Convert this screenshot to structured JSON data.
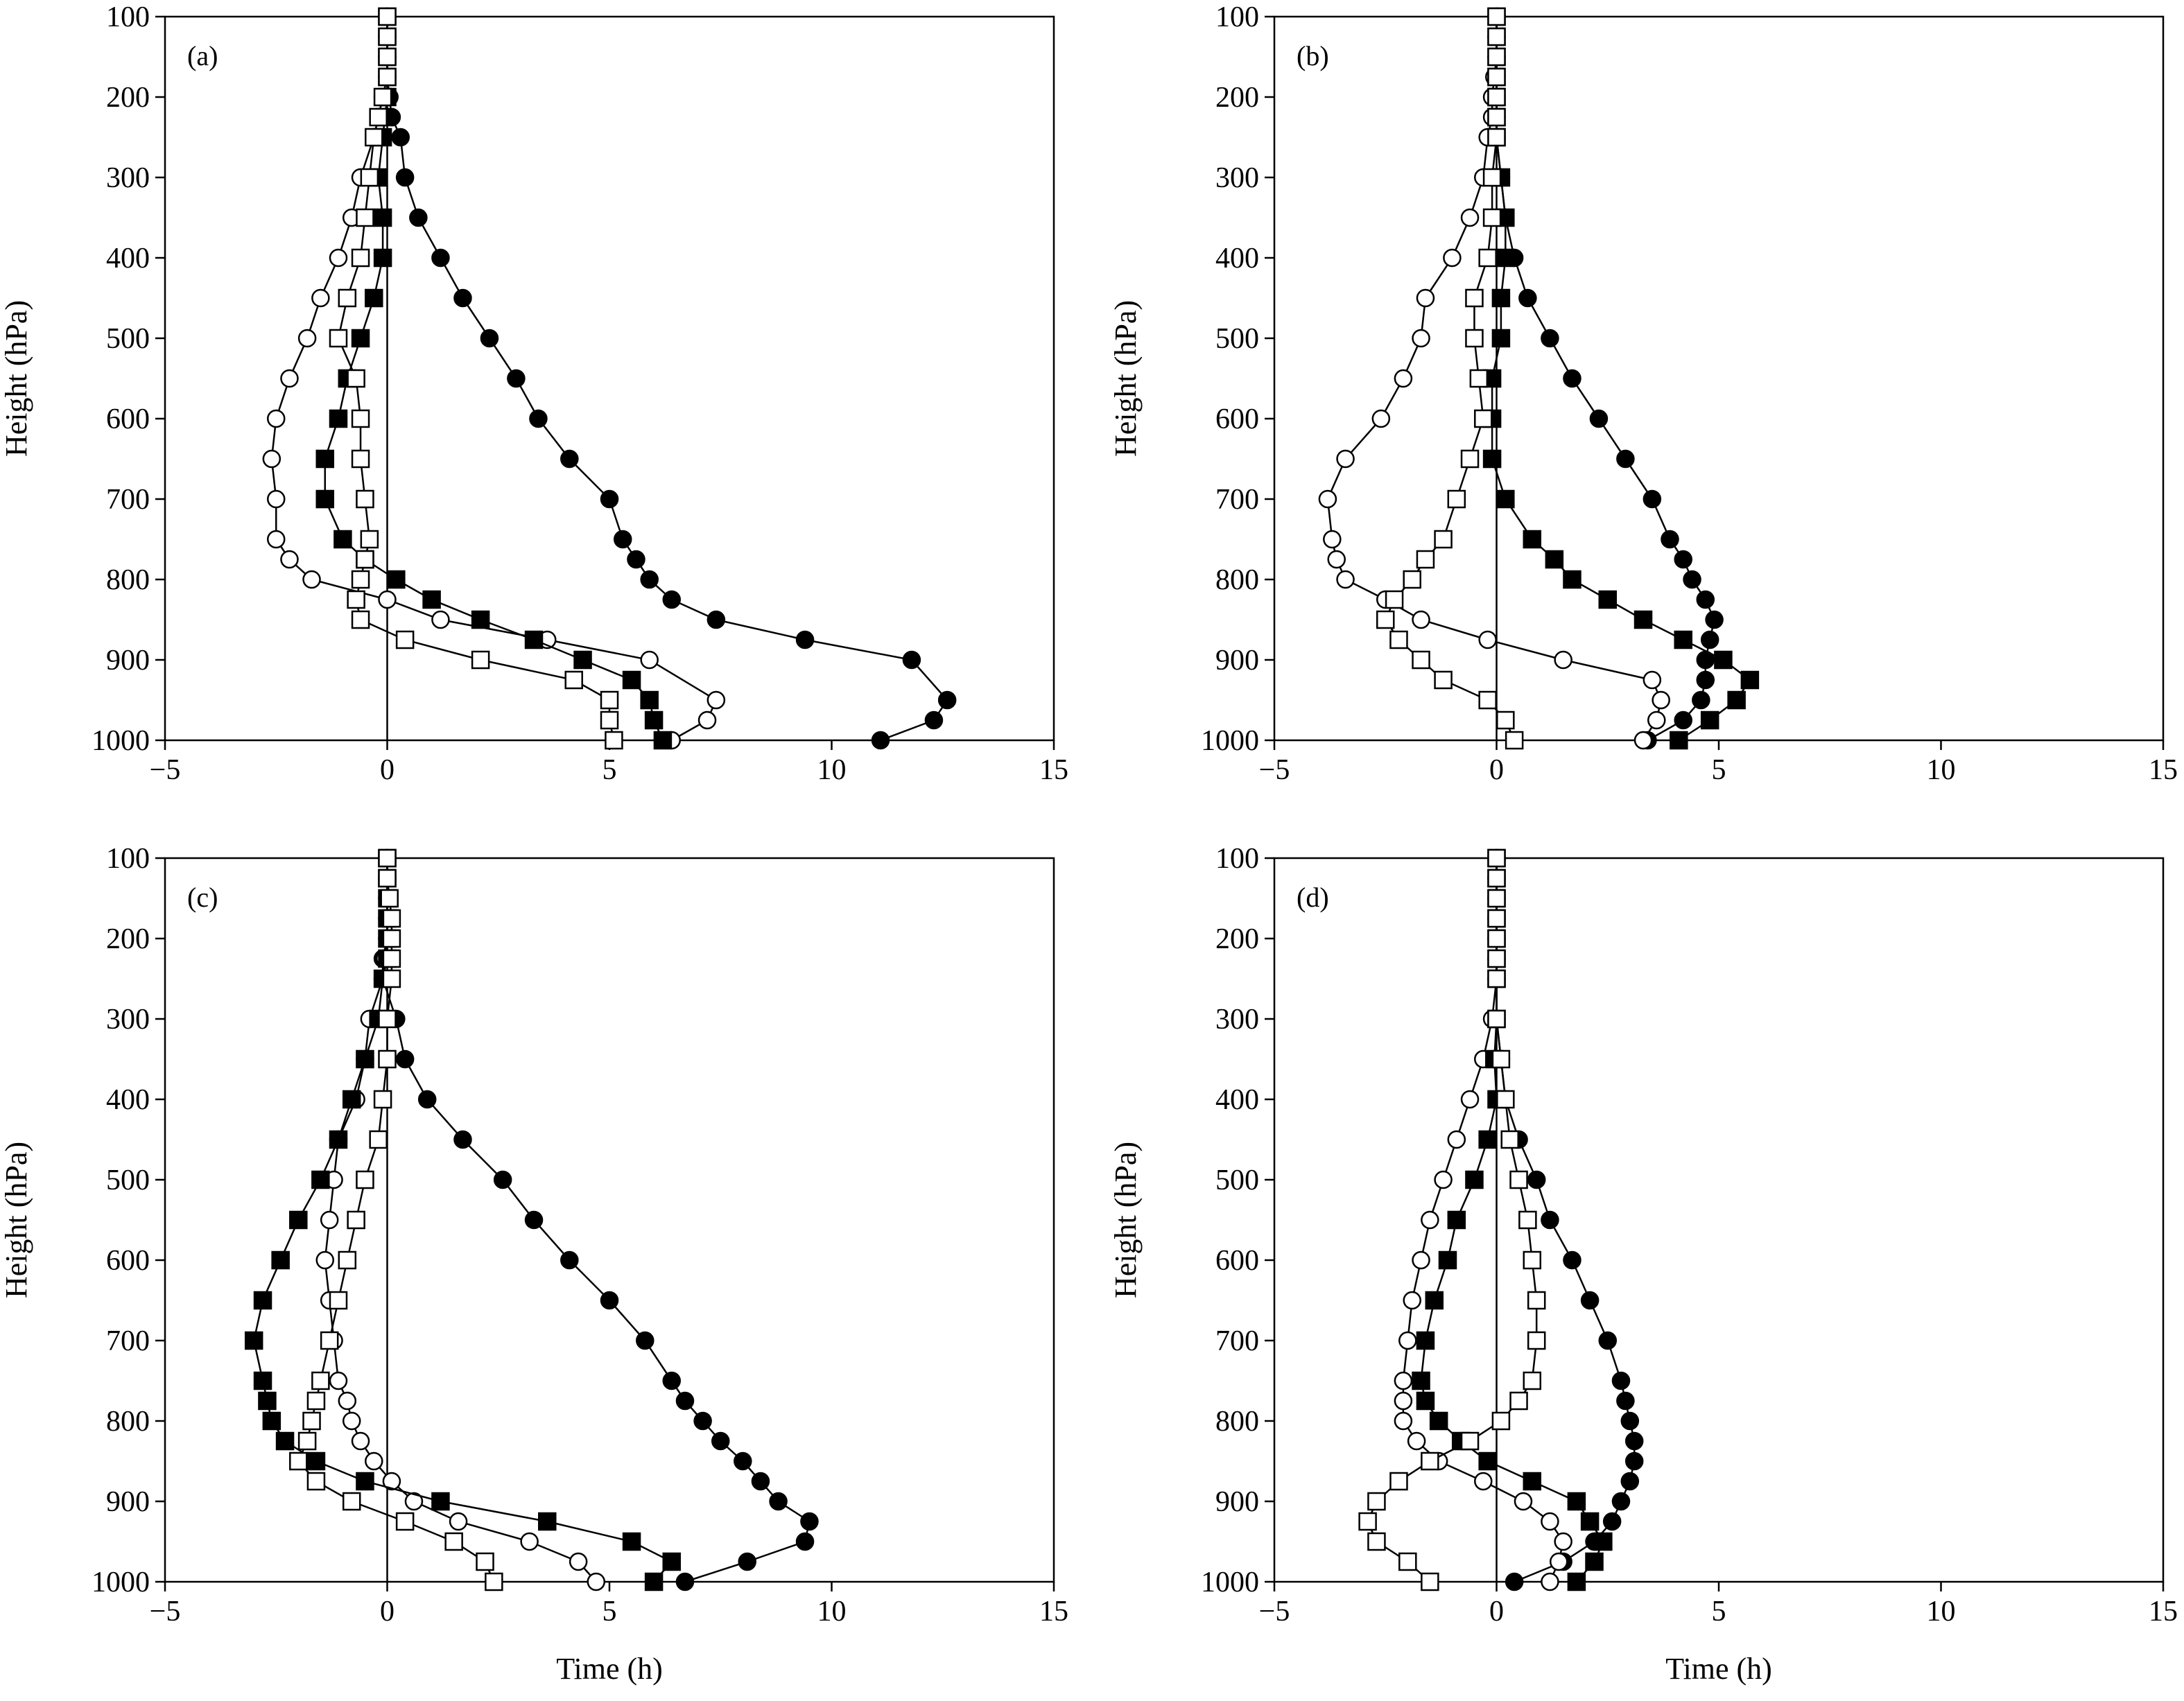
{
  "chart_data": [
    {
      "type": "line",
      "panel_label": "(a)",
      "xlabel": "",
      "ylabel": "Height (hPa)",
      "xlim": [
        -5,
        15
      ],
      "ylim": [
        1000,
        100
      ],
      "xticks": [
        "−5",
        "0",
        "5",
        "10",
        "15"
      ],
      "yticks": [
        "100",
        "200",
        "300",
        "400",
        "500",
        "600",
        "700",
        "800",
        "900",
        "1000"
      ],
      "grid": false,
      "series": [
        {
          "marker": "filled-circle",
          "x": [
            0,
            0,
            0,
            0,
            0.05,
            0.1,
            0.3,
            0.4,
            0.7,
            1.2,
            1.7,
            2.3,
            2.9,
            3.4,
            4.1,
            5.0,
            5.3,
            5.6,
            5.9,
            6.4,
            7.4,
            9.4,
            11.8,
            12.6,
            12.3,
            11.1
          ],
          "y": [
            100,
            125,
            150,
            175,
            200,
            225,
            250,
            300,
            350,
            400,
            450,
            500,
            550,
            600,
            650,
            700,
            750,
            775,
            800,
            825,
            850,
            875,
            900,
            950,
            975,
            1000
          ]
        },
        {
          "marker": "open-circle",
          "x": [
            0,
            0,
            0,
            0,
            -0.1,
            -0.2,
            -0.3,
            -0.6,
            -0.8,
            -1.1,
            -1.5,
            -1.8,
            -2.2,
            -2.5,
            -2.6,
            -2.5,
            -2.5,
            -2.2,
            -1.7,
            0,
            1.2,
            3.6,
            5.9,
            7.4,
            7.2,
            6.4
          ],
          "y": [
            100,
            125,
            150,
            175,
            200,
            225,
            250,
            300,
            350,
            400,
            450,
            500,
            550,
            600,
            650,
            700,
            750,
            775,
            800,
            825,
            850,
            875,
            900,
            950,
            975,
            1000
          ]
        },
        {
          "marker": "filled-square",
          "x": [
            0,
            0,
            0,
            0,
            0,
            -0.05,
            -0.1,
            -0.2,
            -0.1,
            -0.1,
            -0.3,
            -0.6,
            -0.9,
            -1.1,
            -1.4,
            -1.4,
            -1.0,
            -0.5,
            0.2,
            1.0,
            2.1,
            3.3,
            4.4,
            5.5,
            5.9,
            6.0,
            6.2
          ],
          "y": [
            100,
            125,
            150,
            175,
            200,
            225,
            250,
            300,
            350,
            400,
            450,
            500,
            550,
            600,
            650,
            700,
            750,
            775,
            800,
            825,
            850,
            875,
            900,
            925,
            950,
            975,
            1000
          ]
        },
        {
          "marker": "open-square",
          "x": [
            0,
            0,
            0,
            0,
            -0.1,
            -0.2,
            -0.3,
            -0.4,
            -0.5,
            -0.6,
            -0.9,
            -1.1,
            -0.7,
            -0.6,
            -0.6,
            -0.5,
            -0.4,
            -0.5,
            -0.6,
            -0.7,
            -0.6,
            0.4,
            2.1,
            4.2,
            5.0,
            5.0,
            5.1
          ],
          "y": [
            100,
            125,
            150,
            175,
            200,
            225,
            250,
            300,
            350,
            400,
            450,
            500,
            550,
            600,
            650,
            700,
            750,
            775,
            800,
            825,
            850,
            875,
            900,
            925,
            950,
            975,
            1000
          ]
        }
      ]
    },
    {
      "type": "line",
      "panel_label": "(b)",
      "xlabel": "",
      "ylabel": "Height (hPa)",
      "xlim": [
        -5,
        15
      ],
      "ylim": [
        1000,
        100
      ],
      "xticks": [
        "−5",
        "0",
        "5",
        "10",
        "15"
      ],
      "yticks": [
        "100",
        "200",
        "300",
        "400",
        "500",
        "600",
        "700",
        "800",
        "900",
        "1000"
      ],
      "grid": false,
      "series": [
        {
          "marker": "filled-circle",
          "x": [
            0,
            0,
            0,
            0,
            0,
            0,
            0,
            0.1,
            0.2,
            0.4,
            0.7,
            1.2,
            1.7,
            2.3,
            2.9,
            3.5,
            3.9,
            4.2,
            4.4,
            4.7,
            4.9,
            4.8,
            4.7,
            4.7,
            4.6,
            4.2,
            3.4
          ],
          "y": [
            100,
            125,
            150,
            175,
            200,
            225,
            250,
            300,
            350,
            400,
            450,
            500,
            550,
            600,
            650,
            700,
            750,
            775,
            800,
            825,
            850,
            875,
            900,
            925,
            950,
            975,
            1000
          ]
        },
        {
          "marker": "open-circle",
          "x": [
            0,
            0,
            0,
            -0.05,
            -0.1,
            -0.1,
            -0.2,
            -0.3,
            -0.6,
            -1.0,
            -1.6,
            -1.7,
            -2.1,
            -2.6,
            -3.4,
            -3.8,
            -3.7,
            -3.6,
            -3.4,
            -2.5,
            -1.7,
            -0.2,
            1.5,
            3.5,
            3.7,
            3.6,
            3.3
          ],
          "y": [
            100,
            125,
            150,
            175,
            200,
            225,
            250,
            300,
            350,
            400,
            450,
            500,
            550,
            600,
            650,
            700,
            750,
            775,
            800,
            825,
            850,
            875,
            900,
            925,
            950,
            975,
            1000
          ]
        },
        {
          "marker": "filled-square",
          "x": [
            0,
            0,
            0,
            0,
            0,
            0,
            0,
            0.1,
            0.2,
            0.2,
            0.1,
            0.1,
            -0.1,
            -0.1,
            -0.1,
            0.2,
            0.8,
            1.3,
            1.7,
            2.5,
            3.3,
            4.2,
            5.1,
            5.7,
            5.4,
            4.8,
            4.1
          ],
          "y": [
            100,
            125,
            150,
            175,
            200,
            225,
            250,
            300,
            350,
            400,
            450,
            500,
            550,
            600,
            650,
            700,
            750,
            775,
            800,
            825,
            850,
            875,
            900,
            925,
            950,
            975,
            1000
          ]
        },
        {
          "marker": "open-square",
          "x": [
            0,
            0,
            0,
            0,
            0,
            0,
            0,
            -0.1,
            -0.1,
            -0.2,
            -0.5,
            -0.5,
            -0.4,
            -0.3,
            -0.6,
            -0.9,
            -1.2,
            -1.6,
            -1.9,
            -2.3,
            -2.5,
            -2.2,
            -1.7,
            -1.2,
            -0.2,
            0.2,
            0.4
          ],
          "y": [
            100,
            125,
            150,
            175,
            200,
            225,
            250,
            300,
            350,
            400,
            450,
            500,
            550,
            600,
            650,
            700,
            750,
            775,
            800,
            825,
            850,
            875,
            900,
            925,
            950,
            975,
            1000
          ]
        }
      ]
    },
    {
      "type": "line",
      "panel_label": "(c)",
      "xlabel": "Time (h)",
      "ylabel": "Height (hPa)",
      "xlim": [
        -5,
        15
      ],
      "ylim": [
        1000,
        100
      ],
      "xticks": [
        "−5",
        "0",
        "5",
        "10",
        "15"
      ],
      "yticks": [
        "100",
        "200",
        "300",
        "400",
        "500",
        "600",
        "700",
        "800",
        "900",
        "1000"
      ],
      "grid": false,
      "series": [
        {
          "marker": "filled-circle",
          "x": [
            0,
            0,
            0,
            0,
            0,
            -0.1,
            -0.1,
            0.2,
            0.4,
            0.9,
            1.7,
            2.6,
            3.3,
            4.1,
            5.0,
            5.8,
            6.4,
            6.7,
            7.1,
            7.5,
            8.0,
            8.4,
            8.8,
            9.5,
            9.4,
            8.1,
            6.7
          ],
          "y": [
            100,
            125,
            150,
            175,
            200,
            225,
            250,
            300,
            350,
            400,
            450,
            500,
            550,
            600,
            650,
            700,
            750,
            775,
            800,
            825,
            850,
            875,
            900,
            925,
            950,
            975,
            1000
          ]
        },
        {
          "marker": "open-circle",
          "x": [
            0,
            0,
            0,
            0,
            0,
            -0.05,
            -0.1,
            -0.4,
            -0.5,
            -0.7,
            -1.1,
            -1.2,
            -1.3,
            -1.4,
            -1.3,
            -1.2,
            -1.1,
            -0.9,
            -0.8,
            -0.6,
            -0.3,
            0.1,
            0.6,
            1.6,
            3.2,
            4.3,
            4.7
          ],
          "y": [
            100,
            125,
            150,
            175,
            200,
            225,
            250,
            300,
            350,
            400,
            450,
            500,
            550,
            600,
            650,
            700,
            750,
            775,
            800,
            825,
            850,
            875,
            900,
            925,
            950,
            975,
            1000
          ]
        },
        {
          "marker": "filled-square",
          "x": [
            0,
            0,
            0,
            0,
            0,
            0,
            -0.1,
            -0.2,
            -0.5,
            -0.8,
            -1.1,
            -1.5,
            -2.0,
            -2.4,
            -2.8,
            -3.0,
            -2.8,
            -2.7,
            -2.6,
            -2.3,
            -1.6,
            -0.5,
            1.2,
            3.6,
            5.5,
            6.4,
            6.0
          ],
          "y": [
            100,
            125,
            150,
            175,
            200,
            225,
            250,
            300,
            350,
            400,
            450,
            500,
            550,
            600,
            650,
            700,
            750,
            775,
            800,
            825,
            850,
            875,
            900,
            925,
            950,
            975,
            1000
          ]
        },
        {
          "marker": "open-square",
          "x": [
            0,
            0,
            0.05,
            0.1,
            0.1,
            0.1,
            0.1,
            0,
            0,
            -0.1,
            -0.2,
            -0.5,
            -0.7,
            -0.9,
            -1.1,
            -1.3,
            -1.5,
            -1.6,
            -1.7,
            -1.8,
            -2.0,
            -1.6,
            -0.8,
            0.4,
            1.5,
            2.2,
            2.4
          ],
          "y": [
            100,
            125,
            150,
            175,
            200,
            225,
            250,
            300,
            350,
            400,
            450,
            500,
            550,
            600,
            650,
            700,
            750,
            775,
            800,
            825,
            850,
            875,
            900,
            925,
            950,
            975,
            1000
          ]
        }
      ]
    },
    {
      "type": "line",
      "panel_label": "(d)",
      "xlabel": "Time (h)",
      "ylabel": "Height (hPa)",
      "xlim": [
        -5,
        15
      ],
      "ylim": [
        1000,
        100
      ],
      "xticks": [
        "−5",
        "0",
        "5",
        "10",
        "15"
      ],
      "yticks": [
        "100",
        "200",
        "300",
        "400",
        "500",
        "600",
        "700",
        "800",
        "900",
        "1000"
      ],
      "grid": false,
      "series": [
        {
          "marker": "filled-circle",
          "x": [
            0,
            0,
            0,
            0,
            0,
            0,
            0,
            0,
            0.1,
            0.2,
            0.5,
            0.9,
            1.2,
            1.7,
            2.1,
            2.5,
            2.8,
            2.9,
            3.0,
            3.1,
            3.1,
            3.0,
            2.8,
            2.6,
            2.2,
            1.5,
            0.4
          ],
          "y": [
            100,
            125,
            150,
            175,
            200,
            225,
            250,
            300,
            350,
            400,
            450,
            500,
            550,
            600,
            650,
            700,
            750,
            775,
            800,
            825,
            850,
            875,
            900,
            925,
            950,
            975,
            1000
          ]
        },
        {
          "marker": "open-circle",
          "x": [
            0,
            0,
            0,
            0,
            0,
            0,
            0,
            -0.1,
            -0.3,
            -0.6,
            -0.9,
            -1.2,
            -1.5,
            -1.7,
            -1.9,
            -2.0,
            -2.1,
            -2.1,
            -2.1,
            -1.8,
            -1.3,
            -0.3,
            0.6,
            1.2,
            1.5,
            1.4,
            1.2
          ],
          "y": [
            100,
            125,
            150,
            175,
            200,
            225,
            250,
            300,
            350,
            400,
            450,
            500,
            550,
            600,
            650,
            700,
            750,
            775,
            800,
            825,
            850,
            875,
            900,
            925,
            950,
            975,
            1000
          ]
        },
        {
          "marker": "filled-square",
          "x": [
            0,
            0,
            0,
            0,
            0,
            0,
            0,
            0,
            -0.05,
            0,
            -0.2,
            -0.5,
            -0.9,
            -1.1,
            -1.4,
            -1.6,
            -1.7,
            -1.6,
            -1.3,
            -0.8,
            -0.2,
            0.8,
            1.8,
            2.1,
            2.4,
            2.2,
            1.8
          ],
          "y": [
            100,
            125,
            150,
            175,
            200,
            225,
            250,
            300,
            350,
            400,
            450,
            500,
            550,
            600,
            650,
            700,
            750,
            775,
            800,
            825,
            850,
            875,
            900,
            925,
            950,
            975,
            1000
          ]
        },
        {
          "marker": "open-square",
          "x": [
            0,
            0,
            0,
            0,
            0,
            0,
            0,
            0,
            0.1,
            0.2,
            0.3,
            0.5,
            0.7,
            0.8,
            0.9,
            0.9,
            0.8,
            0.5,
            0.1,
            -0.6,
            -1.5,
            -2.2,
            -2.7,
            -2.9,
            -2.7,
            -2.0,
            -1.5
          ],
          "y": [
            100,
            125,
            150,
            175,
            200,
            225,
            250,
            300,
            350,
            400,
            450,
            500,
            550,
            600,
            650,
            700,
            750,
            775,
            800,
            825,
            850,
            875,
            900,
            925,
            950,
            975,
            1000
          ]
        }
      ]
    }
  ]
}
